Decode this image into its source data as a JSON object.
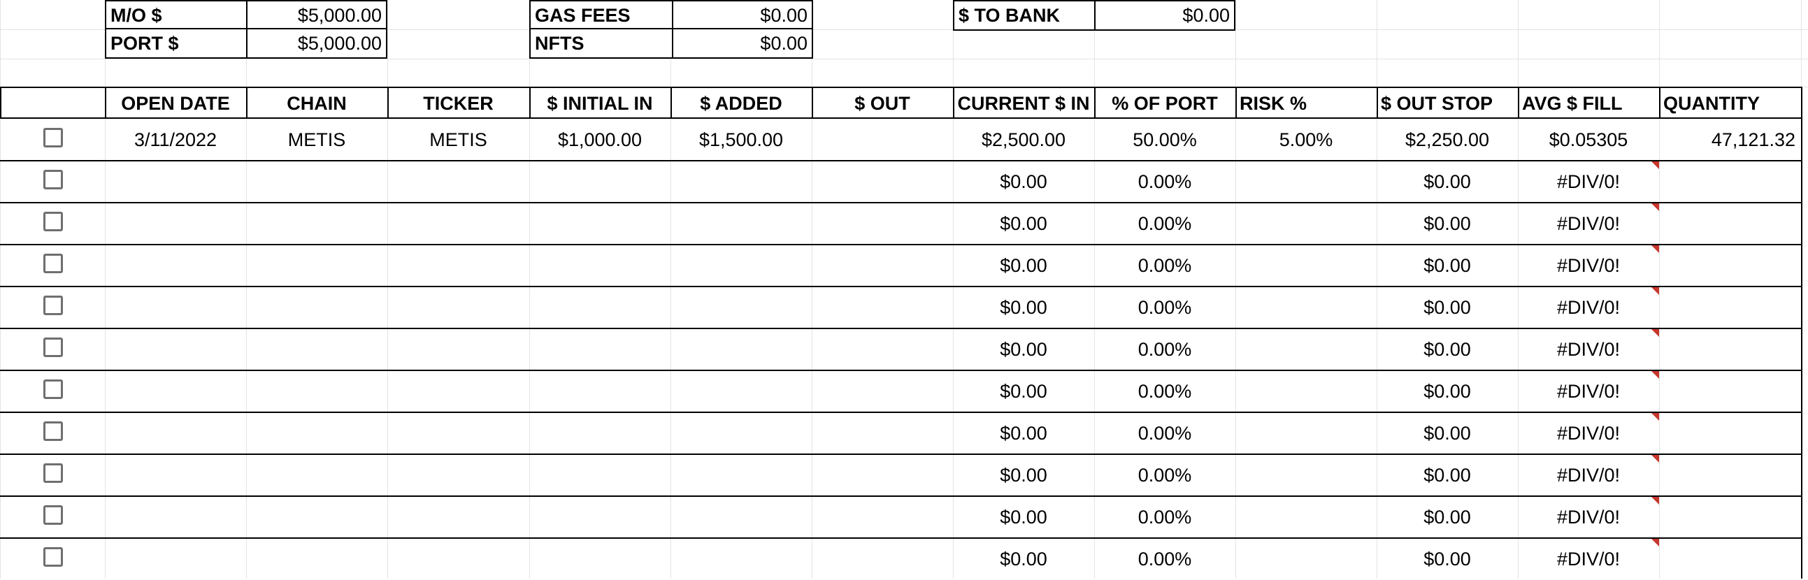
{
  "summary": {
    "mo_label": "M/O $",
    "mo_value": "$5,000.00",
    "port_label": "PORT $",
    "port_value": "$5,000.00",
    "gas_label": "GAS FEES",
    "gas_value": "$0.00",
    "nfts_label": "NFTS",
    "nfts_value": "$0.00",
    "bank_label": "$ TO BANK",
    "bank_value": "$0.00"
  },
  "table": {
    "headers": [
      "OPEN DATE",
      "CHAIN",
      "TICKER",
      "$ INITIAL IN",
      "$ ADDED",
      "$ OUT",
      "CURRENT $ IN",
      "% OF PORT",
      "RISK %",
      "$ OUT STOP",
      "AVG $ FILL",
      "QUANTITY"
    ],
    "rows": [
      {
        "checked": false,
        "open_date": "3/11/2022",
        "chain": "METIS",
        "ticker": "METIS",
        "initial_in": "$1,000.00",
        "added": "$1,500.00",
        "out": "",
        "current_in": "$2,500.00",
        "pct_port": "50.00%",
        "risk": "5.00%",
        "out_stop": "$2,250.00",
        "avg_fill": "$0.05305",
        "quantity": "47,121.32"
      },
      {
        "checked": false,
        "open_date": "",
        "chain": "",
        "ticker": "",
        "initial_in": "",
        "added": "",
        "out": "",
        "current_in": "$0.00",
        "pct_port": "0.00%",
        "risk": "",
        "out_stop": "$0.00",
        "avg_fill": "#DIV/0!",
        "quantity": ""
      },
      {
        "checked": false,
        "open_date": "",
        "chain": "",
        "ticker": "",
        "initial_in": "",
        "added": "",
        "out": "",
        "current_in": "$0.00",
        "pct_port": "0.00%",
        "risk": "",
        "out_stop": "$0.00",
        "avg_fill": "#DIV/0!",
        "quantity": ""
      },
      {
        "checked": false,
        "open_date": "",
        "chain": "",
        "ticker": "",
        "initial_in": "",
        "added": "",
        "out": "",
        "current_in": "$0.00",
        "pct_port": "0.00%",
        "risk": "",
        "out_stop": "$0.00",
        "avg_fill": "#DIV/0!",
        "quantity": ""
      },
      {
        "checked": false,
        "open_date": "",
        "chain": "",
        "ticker": "",
        "initial_in": "",
        "added": "",
        "out": "",
        "current_in": "$0.00",
        "pct_port": "0.00%",
        "risk": "",
        "out_stop": "$0.00",
        "avg_fill": "#DIV/0!",
        "quantity": ""
      },
      {
        "checked": false,
        "open_date": "",
        "chain": "",
        "ticker": "",
        "initial_in": "",
        "added": "",
        "out": "",
        "current_in": "$0.00",
        "pct_port": "0.00%",
        "risk": "",
        "out_stop": "$0.00",
        "avg_fill": "#DIV/0!",
        "quantity": ""
      },
      {
        "checked": false,
        "open_date": "",
        "chain": "",
        "ticker": "",
        "initial_in": "",
        "added": "",
        "out": "",
        "current_in": "$0.00",
        "pct_port": "0.00%",
        "risk": "",
        "out_stop": "$0.00",
        "avg_fill": "#DIV/0!",
        "quantity": ""
      },
      {
        "checked": false,
        "open_date": "",
        "chain": "",
        "ticker": "",
        "initial_in": "",
        "added": "",
        "out": "",
        "current_in": "$0.00",
        "pct_port": "0.00%",
        "risk": "",
        "out_stop": "$0.00",
        "avg_fill": "#DIV/0!",
        "quantity": ""
      },
      {
        "checked": false,
        "open_date": "",
        "chain": "",
        "ticker": "",
        "initial_in": "",
        "added": "",
        "out": "",
        "current_in": "$0.00",
        "pct_port": "0.00%",
        "risk": "",
        "out_stop": "$0.00",
        "avg_fill": "#DIV/0!",
        "quantity": ""
      },
      {
        "checked": false,
        "open_date": "",
        "chain": "",
        "ticker": "",
        "initial_in": "",
        "added": "",
        "out": "",
        "current_in": "$0.00",
        "pct_port": "0.00%",
        "risk": "",
        "out_stop": "$0.00",
        "avg_fill": "#DIV/0!",
        "quantity": ""
      },
      {
        "checked": false,
        "open_date": "",
        "chain": "",
        "ticker": "",
        "initial_in": "",
        "added": "",
        "out": "",
        "current_in": "$0.00",
        "pct_port": "0.00%",
        "risk": "",
        "out_stop": "$0.00",
        "avg_fill": "#DIV/0!",
        "quantity": ""
      }
    ]
  },
  "colors": {
    "error_flag": "#c5372c",
    "gridline": "#e2e3e3",
    "checkbox_border": "#6f6f6f"
  },
  "icons": {
    "checkbox": "checkbox-unchecked-icon",
    "error_flag": "error-flag-icon"
  }
}
